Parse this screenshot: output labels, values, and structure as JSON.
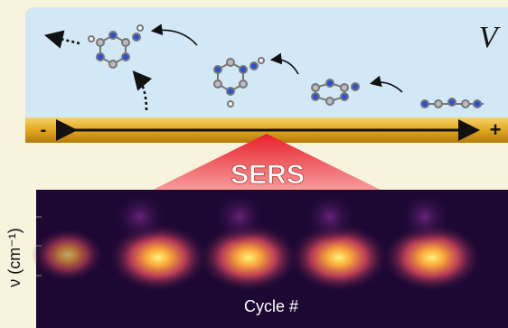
{
  "top_panel": {
    "voltage_label": "V",
    "minus_label": "-",
    "plus_label": "+"
  },
  "banner": "SERS",
  "heatmap": {
    "y_label": "ν (cm⁻¹)",
    "x_label": "Cycle #"
  }
}
